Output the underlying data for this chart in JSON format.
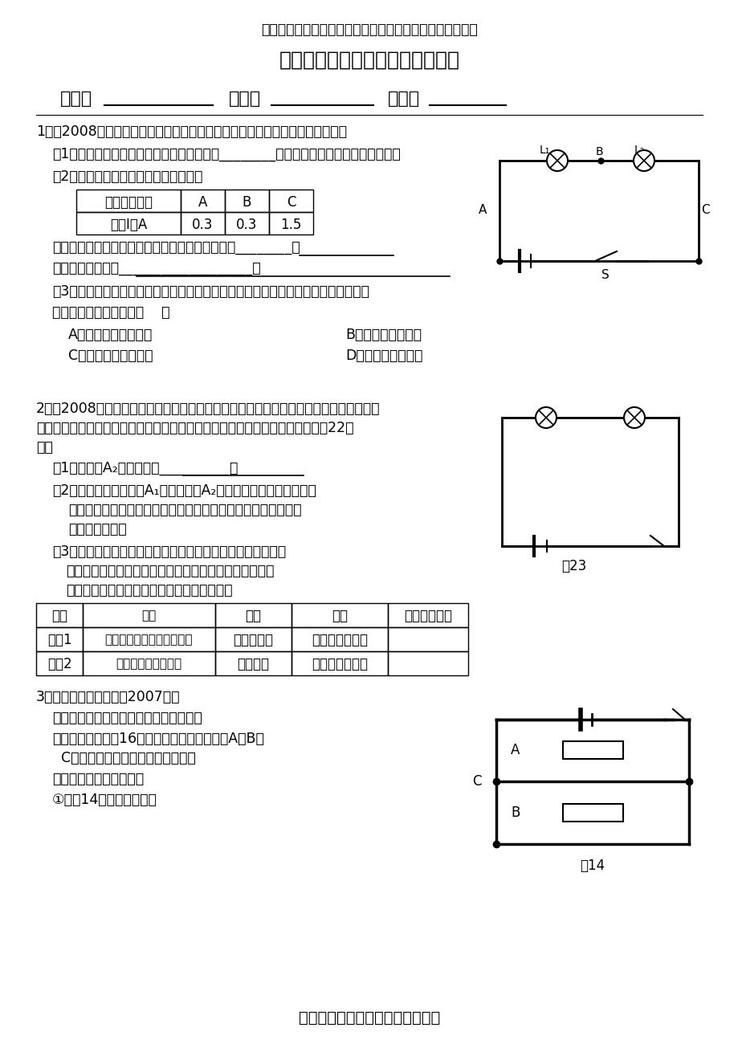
{
  "bg_color": "#ffffff",
  "header_text": "》》》》》》》》》",
  "title": "串、并联电路电流特点的实验探究",
  "class_label": "班级：",
  "name_label": "姓名：",
  "score_label": "成绩：",
  "footer": "．．．．．精品文档．．．．．．",
  "q1_text": "1．（2008年辽宁省十二市）如图是「探究串联电路电流特点」的实验电路图：",
  "q1_1": "（1）实验中，选择两个小灯泡的规格应该是________的（填「相同」或「不相同」）。",
  "q1_2": "（2）下表是某同学实验中的一组数据：",
  "q1_table_headers": [
    "电流表的位置",
    "A",
    "B",
    "C"
  ],
  "q1_table_row": [
    "电流I／A",
    "0.3",
    "0.3",
    "1.5"
  ],
  "q1_3": "指出上述表格所记录的数据中，明显错误的数值是________，",
  "q1_4": "造成错误的原因是___________________。",
  "q1_5": "（3）实验中某同学发现两个串联的小灯泡中，一个发光，一个不发光，造成其中一个",
  "q1_6": "小灯泡不发光的原因是（    ）",
  "q1_7a": "A．通过灯泡的电流小",
  "q1_7b": "B．灯泡的灯丝断了",
  "q1_7c": "C．灯泡两端的电压小",
  "q1_7d": "D．小灯泡靠近负极",
  "q2_text": "2．（2008年广州市）某同学希望通过比较电路中不同位置的电流表的读数来研究串联电",
  "q2_text2": "路的电流规律．所接电路图如图所示，闭合开关后，两电流表指针偏转情况如图22所",
  "q2_text3": "示．",
  "q2_1": "（1）电流表A₂的读数是：__________。",
  "q2_2": "（2）该同学发现电流表A₁指针偏转较A₂小，所以他认为「串联电路",
  "q2_2b": "电流每流经一个用电器，电流都会减弱一些」．请你指出造成偏",
  "q2_2c": "断错误的原因．",
  "q2_3": "（3）连接电路后，两灯泡都亮，由于连线较乱，一时无法确定",
  "q2_3b": "电路是串联还是并联，以下两种简单判断方法是否可行？",
  "q2_3c": "请你在表中空格填写「可行」或「不可行」．",
  "q2_table_headers": [
    "方法",
    "操作",
    "现象",
    "结论",
    "方法是否可行"
  ],
  "q2_table_rows": [
    [
      "方法1",
      "把其中一灯泡从灯座中取下",
      "另一灯息灯",
      "两灯一定是串联",
      ""
    ],
    [
      "方法2",
      "把任意一根导线断开",
      "两灯息灯",
      "两灯一定是串联",
      ""
    ]
  ],
  "q3_text": "3．（江西省课改实验区2007年）",
  "q3_1": "《探究名称》探究并联电路中电流的关系",
  "q3_2": "《提出问题》如图16所示的并联电路中，流过A、B、",
  "q3_2b": "  C各处的电流之间可能有什么关系？",
  "q3_3": "《设计实验与进行实验》",
  "q3_4": "①按图14所示连接电路；",
  "fig23_label": "图23",
  "fig14_label": "图14"
}
